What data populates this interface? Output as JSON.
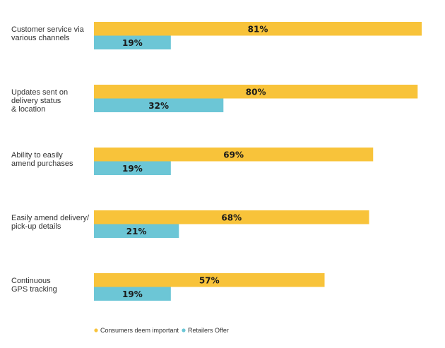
{
  "chart_data": {
    "type": "bar",
    "orientation": "horizontal",
    "categories": [
      [
        "Customer service via",
        "various channels"
      ],
      [
        "Updates sent on",
        "delivery status",
        "& location"
      ],
      [
        "Ability to easily",
        "amend purchases"
      ],
      [
        "Easily amend delivery/",
        "pick-up details"
      ],
      [
        "Continuous",
        "GPS tracking"
      ]
    ],
    "series": [
      {
        "name": "Consumers deem important",
        "color": "#f8c33a",
        "values": [
          81,
          80,
          69,
          68,
          57
        ],
        "labels": [
          "81%",
          "80%",
          "69%",
          "68%",
          "57%"
        ]
      },
      {
        "name": "Retailers Offer",
        "color": "#6cc6d6",
        "values": [
          19,
          32,
          19,
          21,
          19
        ],
        "labels": [
          "19%",
          "32%",
          "19%",
          "21%",
          "19%"
        ]
      }
    ],
    "xlim": [
      0,
      81
    ],
    "grid": false,
    "legend_position": "bottom-left"
  }
}
